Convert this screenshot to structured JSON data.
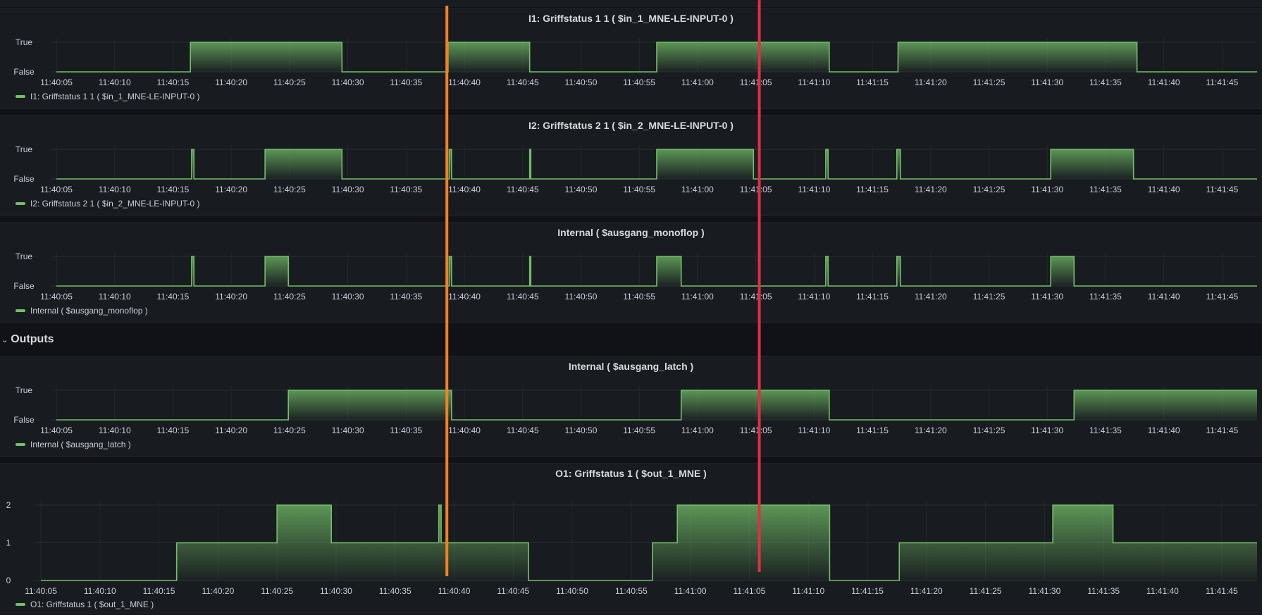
{
  "row_title": "Outputs",
  "colors": {
    "series": "#73bf69",
    "cursor_orange": "#ff7f1e",
    "cursor_red": "#e02f44"
  },
  "chart_data": [
    {
      "id": "p1",
      "type": "line",
      "title": "I1: Griffstatus 1 1 ( $in_1_MNE-LE-INPUT-0 )",
      "legend": "I1: Griffstatus 1 1 ( $in_1_MNE-LE-INPUT-0 )",
      "x_start": "11:40:05",
      "x_end": "11:41:48",
      "x_ticks": [
        "11:40:05",
        "11:40:10",
        "11:40:15",
        "11:40:20",
        "11:40:25",
        "11:40:30",
        "11:40:35",
        "11:40:40",
        "11:40:45",
        "11:40:50",
        "11:40:55",
        "11:41:00",
        "11:41:05",
        "11:41:10",
        "11:41:15",
        "11:41:20",
        "11:41:25",
        "11:41:30",
        "11:41:35",
        "11:41:40",
        "11:41:45"
      ],
      "y_ticks": [
        {
          "value": 1,
          "label": "True"
        },
        {
          "value": 0,
          "label": "False"
        }
      ],
      "ylim": [
        0,
        1
      ],
      "series": [
        {
          "name": "I1: Griffstatus 1 1 ( $in_1_MNE-LE-INPUT-0 )",
          "steps": [
            [
              0,
              0
            ],
            [
              11.5,
              1
            ],
            [
              24.5,
              0
            ],
            [
              33.6,
              1
            ],
            [
              40.6,
              0
            ],
            [
              51.5,
              1
            ],
            [
              66.3,
              0
            ],
            [
              72.2,
              1
            ],
            [
              92.7,
              0
            ]
          ]
        }
      ]
    },
    {
      "id": "p2",
      "type": "line",
      "title": "I2: Griffstatus 2 1 ( $in_2_MNE-LE-INPUT-0 )",
      "legend": "I2: Griffstatus 2 1 ( $in_2_MNE-LE-INPUT-0 )",
      "x_start": "11:40:05",
      "x_end": "11:41:48",
      "x_ticks": [
        "11:40:05",
        "11:40:10",
        "11:40:15",
        "11:40:20",
        "11:40:25",
        "11:40:30",
        "11:40:35",
        "11:40:40",
        "11:40:45",
        "11:40:50",
        "11:40:55",
        "11:41:00",
        "11:41:05",
        "11:41:10",
        "11:41:15",
        "11:41:20",
        "11:41:25",
        "11:41:30",
        "11:41:35",
        "11:41:40",
        "11:41:45"
      ],
      "y_ticks": [
        {
          "value": 1,
          "label": "True"
        },
        {
          "value": 0,
          "label": "False"
        }
      ],
      "ylim": [
        0,
        1
      ],
      "series": [
        {
          "name": "I2: Griffstatus 2 1 ( $in_2_MNE-LE-INPUT-0 )",
          "steps": [
            [
              0,
              0
            ],
            [
              11.6,
              1
            ],
            [
              11.8,
              0
            ],
            [
              17.9,
              1
            ],
            [
              24.5,
              0
            ],
            [
              33.7,
              1
            ],
            [
              33.9,
              0
            ],
            [
              40.6,
              1
            ],
            [
              40.7,
              0
            ],
            [
              51.5,
              1
            ],
            [
              59.8,
              0
            ],
            [
              66.0,
              1
            ],
            [
              66.2,
              0
            ],
            [
              72.1,
              1
            ],
            [
              72.4,
              0
            ],
            [
              85.3,
              1
            ],
            [
              92.4,
              0
            ]
          ]
        }
      ]
    },
    {
      "id": "p3",
      "type": "line",
      "title": "Internal ( $ausgang_monoflop )",
      "legend": "Internal ( $ausgang_monoflop )",
      "x_start": "11:40:05",
      "x_end": "11:41:48",
      "x_ticks": [
        "11:40:05",
        "11:40:10",
        "11:40:15",
        "11:40:20",
        "11:40:25",
        "11:40:30",
        "11:40:35",
        "11:40:40",
        "11:40:45",
        "11:40:50",
        "11:40:55",
        "11:41:00",
        "11:41:05",
        "11:41:10",
        "11:41:15",
        "11:41:20",
        "11:41:25",
        "11:41:30",
        "11:41:35",
        "11:41:40",
        "11:41:45"
      ],
      "y_ticks": [
        {
          "value": 1,
          "label": "True"
        },
        {
          "value": 0,
          "label": "False"
        }
      ],
      "ylim": [
        0,
        1
      ],
      "series": [
        {
          "name": "Internal ( $ausgang_monoflop )",
          "steps": [
            [
              0,
              0
            ],
            [
              11.6,
              1
            ],
            [
              11.8,
              0
            ],
            [
              17.9,
              1
            ],
            [
              19.9,
              0
            ],
            [
              33.7,
              1
            ],
            [
              33.9,
              0
            ],
            [
              40.6,
              1
            ],
            [
              40.7,
              0
            ],
            [
              51.5,
              1
            ],
            [
              53.6,
              0
            ],
            [
              66.0,
              1
            ],
            [
              66.2,
              0
            ],
            [
              72.1,
              1
            ],
            [
              72.4,
              0
            ],
            [
              85.3,
              1
            ],
            [
              87.3,
              0
            ]
          ]
        }
      ]
    },
    {
      "id": "p4",
      "type": "line",
      "title": "Internal ( $ausgang_latch )",
      "legend": "Internal ( $ausgang_latch )",
      "x_start": "11:40:05",
      "x_end": "11:41:48",
      "x_ticks": [
        "11:40:05",
        "11:40:10",
        "11:40:15",
        "11:40:20",
        "11:40:25",
        "11:40:30",
        "11:40:35",
        "11:40:40",
        "11:40:45",
        "11:40:50",
        "11:40:55",
        "11:41:00",
        "11:41:05",
        "11:41:10",
        "11:41:15",
        "11:41:20",
        "11:41:25",
        "11:41:30",
        "11:41:35",
        "11:41:40",
        "11:41:45"
      ],
      "y_ticks": [
        {
          "value": 1,
          "label": "True"
        },
        {
          "value": 0,
          "label": "False"
        }
      ],
      "ylim": [
        0,
        1
      ],
      "series": [
        {
          "name": "Internal ( $ausgang_latch )",
          "steps": [
            [
              0,
              0
            ],
            [
              19.9,
              1
            ],
            [
              33.9,
              0
            ],
            [
              53.6,
              1
            ],
            [
              66.3,
              0
            ],
            [
              87.3,
              1
            ]
          ]
        }
      ]
    },
    {
      "id": "p5",
      "type": "line",
      "title": "O1: Griffstatus 1 ( $out_1_MNE )",
      "legend": "O1: Griffstatus 1 ( $out_1_MNE )",
      "x_start": "11:40:05",
      "x_end": "11:41:48",
      "x_ticks": [
        "11:40:05",
        "11:40:10",
        "11:40:15",
        "11:40:20",
        "11:40:25",
        "11:40:30",
        "11:40:35",
        "11:40:40",
        "11:40:45",
        "11:40:50",
        "11:40:55",
        "11:41:00",
        "11:41:05",
        "11:41:10",
        "11:41:15",
        "11:41:20",
        "11:41:25",
        "11:41:30",
        "11:41:35",
        "11:41:40",
        "11:41:45"
      ],
      "y_ticks": [
        {
          "value": 2,
          "label": "2"
        },
        {
          "value": 1,
          "label": "1"
        },
        {
          "value": 0,
          "label": "0"
        }
      ],
      "ylim": [
        0,
        2
      ],
      "series": [
        {
          "name": "O1: Griffstatus 1 ( $out_1_MNE )",
          "steps": [
            [
              0,
              0
            ],
            [
              11.5,
              1
            ],
            [
              20.0,
              2
            ],
            [
              24.6,
              1
            ],
            [
              33.7,
              2
            ],
            [
              33.9,
              1
            ],
            [
              41.3,
              0
            ],
            [
              51.8,
              1
            ],
            [
              53.9,
              2
            ],
            [
              66.8,
              0
            ],
            [
              72.7,
              1
            ],
            [
              85.7,
              2
            ],
            [
              90.8,
              1
            ]
          ]
        }
      ]
    }
  ],
  "cursors": [
    {
      "name": "orange-cursor",
      "time": "11:40:38.5",
      "offset_s": 33.5
    },
    {
      "name": "red-cursor",
      "time": "11:41:05.3",
      "offset_s": 60.3
    }
  ]
}
